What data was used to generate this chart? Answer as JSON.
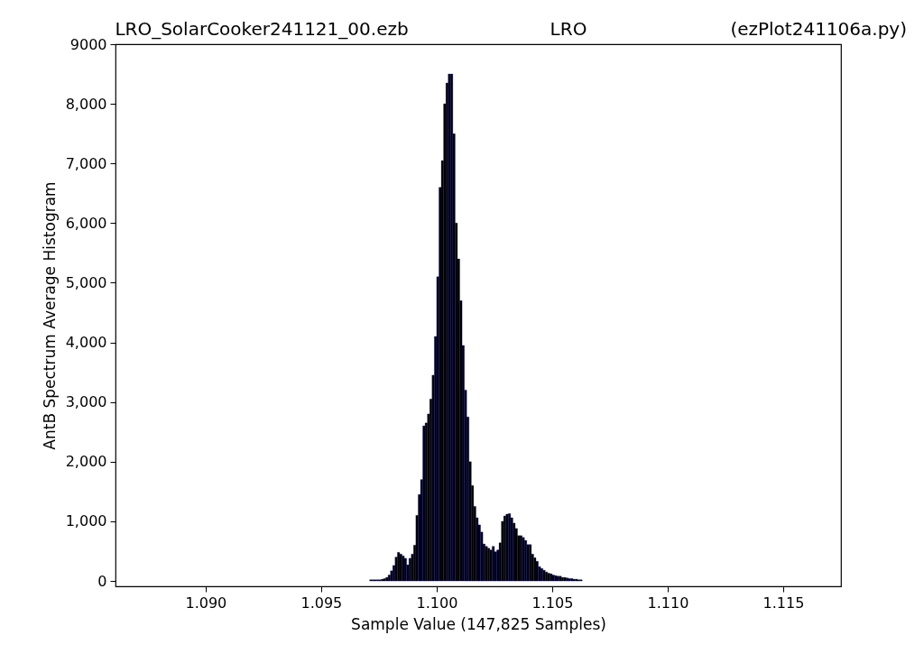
{
  "chart_data": {
    "type": "histogram",
    "title": "LRO_SolarCooker241121_00.ezb",
    "annotations": [
      "LRO",
      "(ezPlot241106a.py)"
    ],
    "xlabel": "Sample Value (147,825 Samples)",
    "ylabel": "AntB Spectrum Average Histogram",
    "color": "#000000",
    "bins": [
      1.0971,
      1.0972,
      1.0973,
      1.0974,
      1.0975,
      1.0976,
      1.0977,
      1.0978,
      1.0979,
      1.098,
      1.0981,
      1.0982,
      1.0983,
      1.0984,
      1.0985,
      1.0986,
      1.0987,
      1.0988,
      1.0989,
      1.099,
      1.0991,
      1.0992,
      1.0993,
      1.0994,
      1.0995,
      1.0996,
      1.0997,
      1.0998,
      1.0999,
      1.1,
      1.1001,
      1.1002,
      1.1003,
      1.1004,
      1.1005,
      1.1006,
      1.1007,
      1.1008,
      1.1009,
      1.101,
      1.1011,
      1.1012,
      1.1013,
      1.1014,
      1.1015,
      1.1016,
      1.1017,
      1.1018,
      1.1019,
      1.102,
      1.1021,
      1.1022,
      1.1023,
      1.1024,
      1.1025,
      1.1026,
      1.1027,
      1.1028,
      1.1029,
      1.103,
      1.1031,
      1.1032,
      1.1033,
      1.1034,
      1.1035,
      1.1036,
      1.1037,
      1.1038,
      1.1039,
      1.104,
      1.1041,
      1.1042,
      1.1043,
      1.1044,
      1.1045,
      1.1046,
      1.1047,
      1.1048,
      1.1049,
      1.105,
      1.1051,
      1.1052,
      1.1053,
      1.1054,
      1.1055,
      1.1056,
      1.1057,
      1.1058,
      1.1059,
      1.106,
      1.1061,
      1.1062,
      1.1063
    ],
    "values": [
      20,
      20,
      20,
      20,
      20,
      30,
      40,
      60,
      100,
      170,
      260,
      400,
      480,
      450,
      420,
      380,
      270,
      380,
      450,
      600,
      1100,
      1450,
      1700,
      2600,
      2650,
      2800,
      3050,
      3450,
      4100,
      5100,
      6600,
      7050,
      8000,
      8350,
      8500,
      8500,
      7500,
      6000,
      5400,
      4700,
      3950,
      3200,
      2750,
      2000,
      1600,
      1250,
      1060,
      940,
      820,
      620,
      580,
      550,
      520,
      580,
      490,
      520,
      640,
      1000,
      1090,
      1120,
      1130,
      1060,
      970,
      880,
      760,
      760,
      730,
      680,
      610,
      610,
      450,
      390,
      330,
      240,
      210,
      180,
      150,
      130,
      120,
      100,
      90,
      80,
      80,
      60,
      60,
      50,
      40,
      40,
      30,
      30,
      20,
      20
    ],
    "xlim": [
      1.0861,
      1.1175
    ],
    "xticks": [
      {
        "value": 1.09,
        "label": "1.090"
      },
      {
        "value": 1.095,
        "label": "1.095"
      },
      {
        "value": 1.1,
        "label": "1.100"
      },
      {
        "value": 1.105,
        "label": "1.105"
      },
      {
        "value": 1.11,
        "label": "1.110"
      },
      {
        "value": 1.115,
        "label": "1.115"
      }
    ],
    "ylim": [
      -90,
      9000
    ],
    "yticks": [
      0,
      {
        "value": 1000,
        "label": "1,000"
      },
      {
        "value": 2000,
        "label": "2,000"
      },
      {
        "value": 3000,
        "label": "3,000"
      },
      {
        "value": 4000,
        "label": "4,000"
      },
      {
        "value": 5000,
        "label": "5,000"
      },
      {
        "value": 6000,
        "label": "6,000"
      },
      {
        "value": 7000,
        "label": "7,000"
      },
      {
        "value": 8000,
        "label": "8,000"
      },
      9000
    ],
    "grid": false
  }
}
